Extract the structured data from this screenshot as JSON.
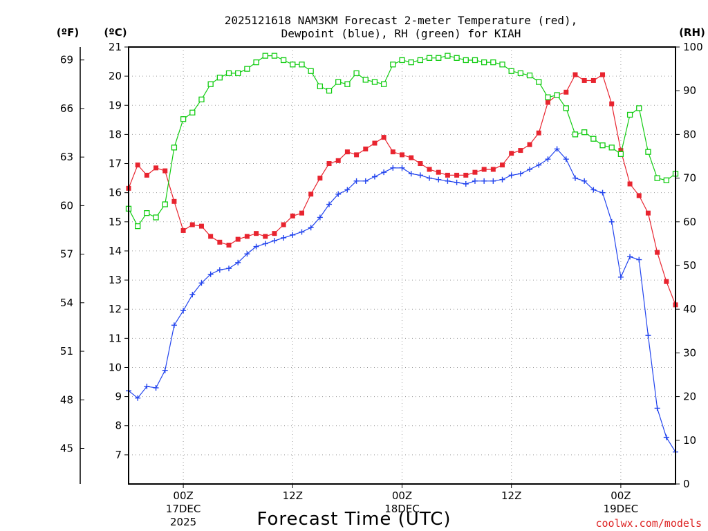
{
  "chart_data": {
    "type": "line",
    "title_line1": "2025121618 NAM3KM Forecast 2-meter Temperature (red),",
    "title_line2": "Dewpoint (blue), RH (green) for KIAH",
    "xlabel": "Forecast Time (UTC)",
    "credit": "coolwx.com/models",
    "units": {
      "fahrenheit": "(ºF)",
      "celsius": "(ºC)",
      "rh": "(RH)"
    },
    "ylim_c": [
      6,
      21
    ],
    "ylim_rh": [
      0,
      100
    ],
    "x_hours_range": [
      -4,
      36
    ],
    "celsius_ticks": [
      "7",
      "8",
      "9",
      "10",
      "11",
      "12",
      "13",
      "14",
      "15",
      "16",
      "17",
      "18",
      "19",
      "20",
      "21"
    ],
    "fahrenheit_ticks": [
      "45",
      "48",
      "51",
      "54",
      "57",
      "60",
      "63",
      "66",
      "69"
    ],
    "rh_ticks": [
      "0",
      "10",
      "20",
      "30",
      "40",
      "50",
      "60",
      "70",
      "80",
      "90",
      "100"
    ],
    "x_ticks": [
      {
        "hour": 0,
        "line1": "00Z",
        "line2": "17DEC",
        "line3": "2025"
      },
      {
        "hour": 8,
        "line1": "12Z",
        "line2": "",
        "line3": ""
      },
      {
        "hour": 16,
        "line1": "00Z",
        "line2": "18DEC",
        "line3": ""
      },
      {
        "hour": 24,
        "line1": "12Z",
        "line2": "",
        "line3": ""
      },
      {
        "hour": 32,
        "line1": "00Z",
        "line2": "19DEC",
        "line3": ""
      }
    ],
    "series": [
      {
        "name": "Temperature (ºC)",
        "color": "#e8242f",
        "marker": "filled-square",
        "axis": "celsius",
        "values": [
          16.15,
          16.95,
          16.6,
          16.85,
          16.75,
          15.7,
          14.7,
          14.9,
          14.85,
          14.5,
          14.3,
          14.2,
          14.4,
          14.5,
          14.6,
          14.5,
          14.6,
          14.9,
          15.2,
          15.3,
          15.95,
          16.5,
          17.0,
          17.1,
          17.4,
          17.3,
          17.5,
          17.7,
          17.9,
          17.4,
          17.3,
          17.2,
          17.0,
          16.8,
          16.7,
          16.6,
          16.6,
          16.6,
          16.7,
          16.8,
          16.8,
          16.95,
          17.35,
          17.45,
          17.65,
          18.05,
          19.1,
          19.35,
          19.45,
          20.05,
          19.85,
          19.85,
          20.05,
          19.05,
          17.45,
          16.3,
          15.9,
          15.3,
          13.95,
          12.95,
          12.15
        ]
      },
      {
        "name": "Dewpoint (ºC)",
        "color": "#2244ee",
        "marker": "plus",
        "axis": "celsius",
        "values": [
          9.2,
          8.95,
          9.35,
          9.3,
          9.9,
          11.45,
          11.95,
          12.5,
          12.9,
          13.2,
          13.35,
          13.4,
          13.6,
          13.9,
          14.15,
          14.25,
          14.35,
          14.45,
          14.55,
          14.65,
          14.8,
          15.15,
          15.6,
          15.95,
          16.1,
          16.4,
          16.4,
          16.55,
          16.7,
          16.85,
          16.85,
          16.65,
          16.6,
          16.5,
          16.45,
          16.4,
          16.35,
          16.3,
          16.4,
          16.4,
          16.4,
          16.45,
          16.6,
          16.65,
          16.8,
          16.95,
          17.15,
          17.5,
          17.15,
          16.5,
          16.4,
          16.1,
          16.0,
          15.0,
          13.1,
          13.8,
          13.7,
          11.1,
          8.6,
          7.6,
          7.1
        ]
      },
      {
        "name": "RH (%)",
        "color": "#11cc11",
        "marker": "open-square",
        "axis": "rh",
        "values": [
          63,
          59,
          62,
          61,
          64,
          77,
          83.5,
          85,
          88,
          91.5,
          93,
          94,
          94,
          95,
          96.5,
          98,
          98,
          97,
          96,
          96,
          94.5,
          91,
          90,
          92,
          91.5,
          94,
          92.5,
          92,
          91.5,
          96,
          97,
          96.5,
          97,
          97.5,
          97.5,
          98,
          97.5,
          97,
          97,
          96.5,
          96.5,
          96,
          94.5,
          94,
          93.5,
          92,
          88.5,
          89,
          86,
          80,
          80.5,
          79,
          77.5,
          77,
          75.5,
          84.5,
          86,
          76,
          70,
          69.5,
          71
        ]
      }
    ]
  }
}
